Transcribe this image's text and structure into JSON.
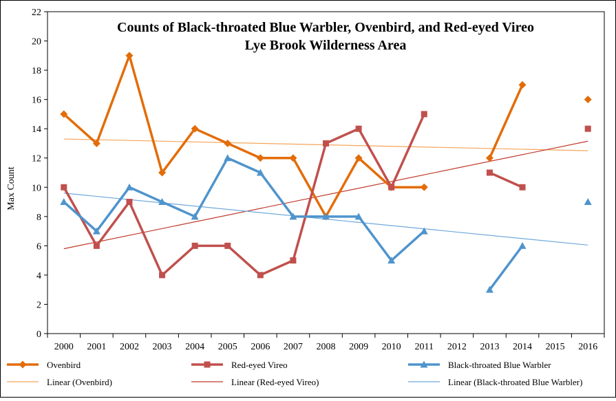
{
  "chart_data": {
    "type": "line",
    "title": [
      "Counts of Black-throated Blue Warbler, Ovenbird, and Red-eyed Vireo",
      "Lye Brook Wilderness  Area"
    ],
    "xlabel": "",
    "ylabel": "Max Count",
    "ylim": [
      0,
      22
    ],
    "y_ticks": [
      "0",
      "2",
      "4",
      "6",
      "8",
      "10",
      "12",
      "14",
      "16",
      "18",
      "20",
      "22"
    ],
    "categories": [
      "2000",
      "2001",
      "2002",
      "2003",
      "2004",
      "2005",
      "2006",
      "2007",
      "2008",
      "2009",
      "2010",
      "2011",
      "2012",
      "2013",
      "2014",
      "2015",
      "2016"
    ],
    "grid": false,
    "series": [
      {
        "name": "Ovenbird",
        "color": "#E36C09",
        "marker": "diamond",
        "values": [
          15,
          13,
          19,
          11,
          14,
          13,
          12,
          12,
          8,
          12,
          10,
          10,
          null,
          12,
          17,
          null,
          16
        ]
      },
      {
        "name": "Red-eyed Vireo",
        "color": "#C0504D",
        "marker": "square",
        "values": [
          10,
          6,
          9,
          4,
          6,
          6,
          4,
          5,
          13,
          14,
          10,
          15,
          null,
          11,
          10,
          null,
          14
        ]
      },
      {
        "name": "Black-throated Blue Warbler",
        "color": "#4F94CD",
        "marker": "triangle",
        "values": [
          9,
          7,
          10,
          9,
          8,
          12,
          11,
          8,
          8,
          8,
          5,
          7,
          null,
          3,
          6,
          null,
          9
        ]
      }
    ],
    "trendlines": [
      {
        "name": "Linear (Ovenbird)",
        "color": "#F5A55A",
        "start": 13.3,
        "end": 12.5
      },
      {
        "name": "Linear (Red-eyed Vireo)",
        "color": "#C0392B",
        "start": 5.8,
        "end": 13.15
      },
      {
        "name": "Linear (Black-throated Blue Warbler)",
        "color": "#6FA8DC",
        "start": 9.6,
        "end": 6.05
      }
    ],
    "legend_position": "bottom"
  }
}
